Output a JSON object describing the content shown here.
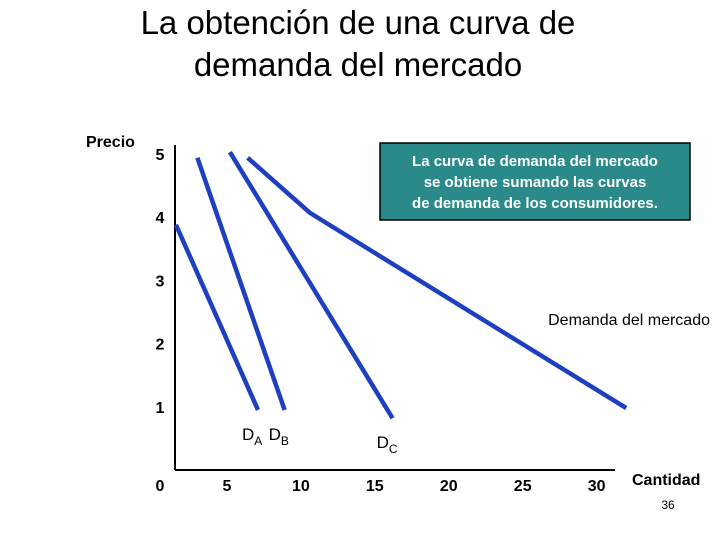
{
  "chart_data": {
    "type": "line",
    "title": [
      "La obtención de una curva de",
      "demanda del mercado"
    ],
    "y_label": "Precio",
    "x_label": "Cantidad",
    "annotation": [
      "La curva de demanda del mercado",
      "se obtiene sumando las curvas",
      "de demanda de los consumidores."
    ],
    "page_number": "36",
    "xlim": [
      0,
      33
    ],
    "ylim": [
      0,
      5.3
    ],
    "xticks": [
      5,
      10,
      15,
      20,
      25,
      30
    ],
    "yticks": [
      0,
      1,
      2,
      3,
      4,
      5
    ],
    "series": [
      {
        "name": "D",
        "subscript": "A",
        "color": "#1d3fc0",
        "x": [
          1.55,
          7.1
        ],
        "values": [
          3.88,
          0.95
        ]
      },
      {
        "name": "D",
        "subscript": "B",
        "color": "#1d3fc0",
        "x": [
          3.0,
          8.9
        ],
        "values": [
          4.94,
          0.95
        ]
      },
      {
        "name": "D",
        "subscript": "C",
        "color": "#1d3fc0",
        "x": [
          5.2,
          16.2
        ],
        "values": [
          5.03,
          0.82
        ]
      },
      {
        "name": "Demanda del mercado",
        "color": "#1d3fc0",
        "x": [
          6.4,
          10.6,
          32.0
        ],
        "values": [
          4.94,
          4.07,
          0.98
        ]
      }
    ]
  }
}
